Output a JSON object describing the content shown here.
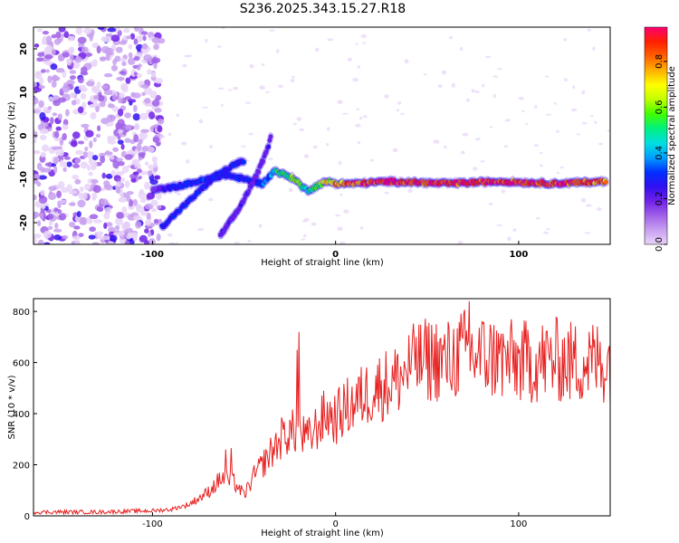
{
  "title": "S236.2025.343.15.27.R18",
  "colors": {
    "snr_line": "#e82020",
    "colormap": [
      "#e8d4f8",
      "#c8a0f0",
      "#a060e8",
      "#7020e8",
      "#3010f0",
      "#0030ff",
      "#00a0ff",
      "#00e0e0",
      "#00f080",
      "#40ff00",
      "#c0ff00",
      "#ffff00",
      "#ffb000",
      "#ff6000",
      "#ff2000",
      "#ff0070"
    ]
  },
  "chart_data": [
    {
      "type": "heatmap",
      "title": "S236.2025.343.15.27.R18",
      "xlabel": "Height of straight line (km)",
      "ylabel": "Frequency (Hz)",
      "xlim": [
        -165,
        150
      ],
      "ylim": [
        -25,
        25
      ],
      "xticks": [
        -100,
        0,
        100
      ],
      "yticks": [
        20,
        10,
        0,
        -10,
        -20
      ],
      "colorbar": {
        "label": "Normalized spectral amplitude",
        "range": [
          0.0,
          0.95
        ],
        "ticks": [
          0.0,
          0.2,
          0.4,
          0.6,
          0.8
        ]
      },
      "features": [
        {
          "name": "noise",
          "x_range": [
            -165,
            -95
          ],
          "y_range": [
            -25,
            25
          ],
          "amplitude": 0.15
        },
        {
          "name": "main-signal",
          "x": [
            -100,
            -90,
            -80,
            -70,
            -60,
            -50,
            -40,
            -33,
            -28,
            -22,
            -18,
            -15,
            -12,
            -8,
            -3,
            0,
            10,
            30,
            60,
            90,
            120,
            148
          ],
          "y": [
            -12.5,
            -12,
            -11,
            -10,
            -9,
            -10,
            -11,
            -8,
            -9,
            -10,
            -12,
            -12.5,
            -12,
            -11,
            -10.5,
            -11,
            -11,
            -10.5,
            -11,
            -10.5,
            -11,
            -10.5
          ],
          "amplitude": [
            0.15,
            0.25,
            0.3,
            0.32,
            0.3,
            0.28,
            0.3,
            0.45,
            0.55,
            0.6,
            0.5,
            0.45,
            0.5,
            0.6,
            0.7,
            0.75,
            0.85,
            0.9,
            0.92,
            0.9,
            0.9,
            0.8
          ]
        },
        {
          "name": "rising-arc-1",
          "x": [
            -95,
            -90,
            -85,
            -80,
            -75,
            -70,
            -65,
            -60,
            -55,
            -50
          ],
          "y": [
            -21,
            -19,
            -17,
            -15,
            -13,
            -11,
            -9,
            -8,
            -6.5,
            -6
          ],
          "amplitude": 0.28
        },
        {
          "name": "rising-arc-2",
          "x": [
            -63,
            -58,
            -53,
            -48,
            -43,
            -38,
            -35
          ],
          "y": [
            -23,
            -20,
            -17,
            -13,
            -9,
            -4,
            0
          ],
          "amplitude": 0.2
        }
      ]
    },
    {
      "type": "line",
      "xlabel": "Height of straight line (km)",
      "ylabel": "SNR (10 * v/v)",
      "xlim": [
        -165,
        150
      ],
      "ylim": [
        0,
        850
      ],
      "xticks": [
        -100,
        0,
        100
      ],
      "yticks": [
        0,
        200,
        400,
        600,
        800
      ],
      "envelope": {
        "x": [
          -165,
          -130,
          -100,
          -90,
          -80,
          -70,
          -62,
          -55,
          -50,
          -45,
          -38,
          -32,
          -28,
          -22,
          -15,
          -10,
          -5,
          0,
          5,
          10,
          15,
          20,
          25,
          30,
          35,
          40,
          45,
          50,
          55,
          60,
          65,
          70,
          75,
          80,
          85,
          90,
          95,
          100,
          110,
          120,
          130,
          140,
          150
        ],
        "y": [
          15,
          15,
          20,
          25,
          45,
          90,
          150,
          130,
          80,
          150,
          220,
          280,
          320,
          330,
          300,
          350,
          400,
          380,
          420,
          440,
          470,
          490,
          510,
          520,
          540,
          580,
          600,
          610,
          615,
          600,
          620,
          640,
          630,
          625,
          620,
          610,
          605,
          600,
          605,
          610,
          600,
          605,
          600
        ]
      },
      "spikes": [
        {
          "x": -20,
          "y": 720
        },
        {
          "x": -21,
          "y": 650
        },
        {
          "x": 73,
          "y": 840
        },
        {
          "x": 88,
          "y": 725
        },
        {
          "x": 44,
          "y": 700
        },
        {
          "x": -60,
          "y": 260
        },
        {
          "x": -57,
          "y": 265
        }
      ]
    }
  ]
}
